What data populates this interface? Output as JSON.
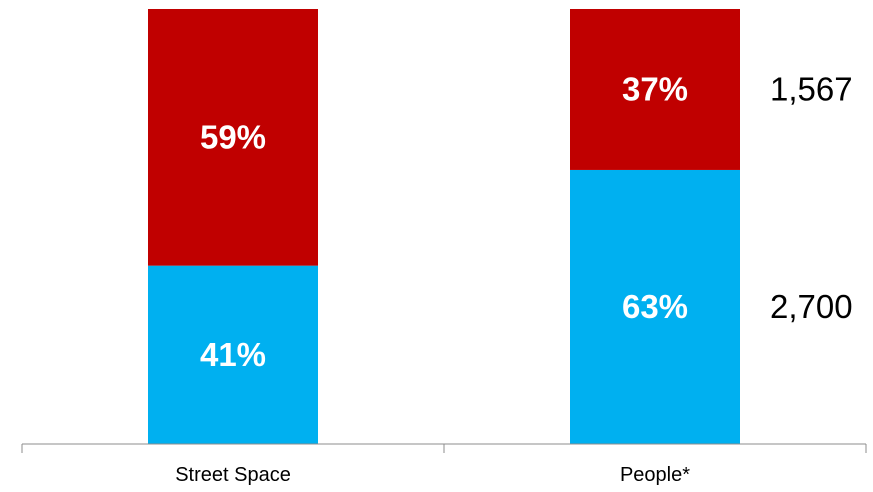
{
  "chart_data": {
    "type": "bar",
    "stacked": true,
    "categories": [
      "Street Space",
      "People*"
    ],
    "series": [
      {
        "values": [
          41,
          63
        ],
        "labels": [
          "41%",
          "63%"
        ],
        "color": "#00B0F0"
      },
      {
        "values": [
          59,
          37
        ],
        "labels": [
          "59%",
          "37%"
        ],
        "color": "#C00000"
      }
    ],
    "side_labels": [
      {
        "category_index": 1,
        "series_index": 1,
        "text": "1,567"
      },
      {
        "category_index": 1,
        "series_index": 0,
        "text": "2,700"
      }
    ],
    "ylim": [
      0,
      100
    ],
    "grid": false,
    "legend": "none",
    "title": "",
    "xlabel": "",
    "ylabel": ""
  }
}
